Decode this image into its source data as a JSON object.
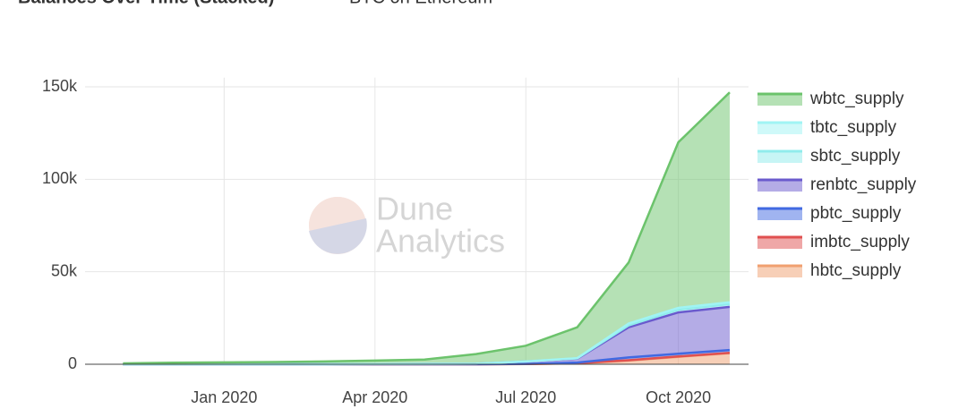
{
  "chart_data": {
    "type": "stacked_area",
    "title": "Balances Over Time (Stacked)",
    "subtitle": "BTC on Ethereum",
    "watermark": [
      "Dune",
      "Analytics"
    ],
    "x": [
      "2019-11",
      "2019-12",
      "2020-01",
      "2020-02",
      "2020-03",
      "2020-04",
      "2020-05",
      "2020-06",
      "2020-07",
      "2020-08",
      "2020-09",
      "2020-10",
      "2020-11"
    ],
    "series": [
      {
        "name": "hbtc_supply",
        "color": "#f0a070",
        "values": [
          0,
          0,
          0,
          0,
          0,
          0,
          0,
          0,
          100,
          500,
          2000,
          4000,
          6000
        ]
      },
      {
        "name": "imbtc_supply",
        "color": "#e05050",
        "values": [
          0,
          0,
          0,
          0,
          0,
          0,
          0,
          0,
          0,
          100,
          200,
          200,
          200
        ]
      },
      {
        "name": "pbtc_supply",
        "color": "#4169e1",
        "values": [
          0,
          0,
          0,
          0,
          0,
          0,
          0,
          0,
          100,
          300,
          1500,
          1500,
          1500
        ]
      },
      {
        "name": "renbtc_supply",
        "color": "#6a5acd",
        "values": [
          0,
          0,
          0,
          0,
          0,
          100,
          200,
          300,
          1300,
          2100,
          16300,
          22300,
          23300
        ]
      },
      {
        "name": "sbtc_supply",
        "color": "#90ecec",
        "values": [
          0,
          0,
          0,
          0,
          0,
          0,
          0,
          0,
          0,
          200,
          1000,
          1500,
          1500
        ]
      },
      {
        "name": "tbtc_supply",
        "color": "#a0f4f4",
        "values": [
          0,
          0,
          0,
          0,
          0,
          0,
          0,
          0,
          0,
          100,
          1000,
          1000,
          1000
        ]
      },
      {
        "name": "wbtc_supply",
        "color": "#6cc36c",
        "values": [
          500,
          800,
          1000,
          1200,
          1500,
          1900,
          2300,
          5200,
          8500,
          16700,
          33000,
          89500,
          113500
        ]
      }
    ],
    "xlim": [
      "2019-10",
      "2020-11"
    ],
    "xticks": [
      {
        "value": "2020-01",
        "label": "Jan 2020"
      },
      {
        "value": "2020-04",
        "label": "Apr 2020"
      },
      {
        "value": "2020-07",
        "label": "Jul 2020"
      },
      {
        "value": "2020-10",
        "label": "Oct 2020"
      }
    ],
    "ylim": [
      0,
      155000
    ],
    "yticks": [
      0,
      {
        "value": 50000,
        "label": "50k"
      },
      {
        "value": 100000,
        "label": "100k"
      },
      {
        "value": 150000,
        "label": "150k"
      }
    ],
    "grid": true,
    "legend": "right"
  }
}
